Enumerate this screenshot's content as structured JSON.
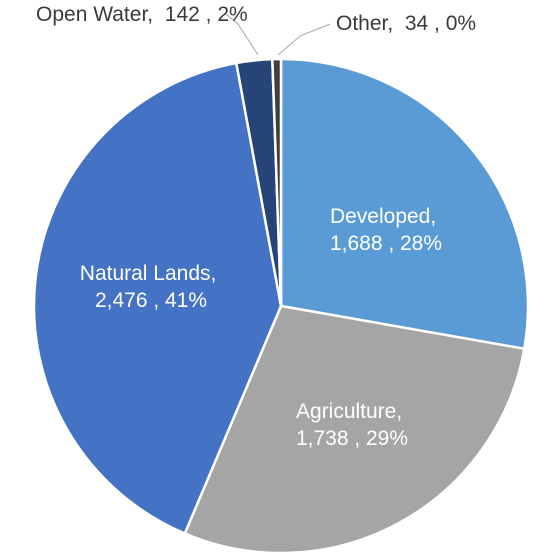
{
  "chart_data": {
    "type": "pie",
    "title": "",
    "slices": [
      {
        "name": "Developed",
        "value": 1688,
        "value_label": "1,688",
        "percent_label": "28%",
        "color": "#5B9BD5",
        "label_line1": "Developed,",
        "label_line2": "1,688 , 28%"
      },
      {
        "name": "Agriculture",
        "value": 1738,
        "value_label": "1,738",
        "percent_label": "29%",
        "color": "#A5A5A5",
        "label_line1": "Agriculture,",
        "label_line2": "1,738 , 29%"
      },
      {
        "name": "Natural Lands",
        "value": 2476,
        "value_label": "2,476",
        "percent_label": "41%",
        "color": "#4472C4",
        "label_line1": "Natural Lands,",
        "label_line2": "2,476 , 41%"
      },
      {
        "name": "Open Water",
        "value": 142,
        "value_label": "142",
        "percent_label": "2%",
        "color": "#264478",
        "label_line1": "Open Water,  142 , 2%"
      },
      {
        "name": "Other",
        "value": 34,
        "value_label": "34",
        "percent_label": "0%",
        "color": "#3F3F3F",
        "label_line1": "Other,  34 , 0%"
      }
    ],
    "start_angle_deg": 0,
    "direction": "clockwise",
    "legend": "none"
  }
}
